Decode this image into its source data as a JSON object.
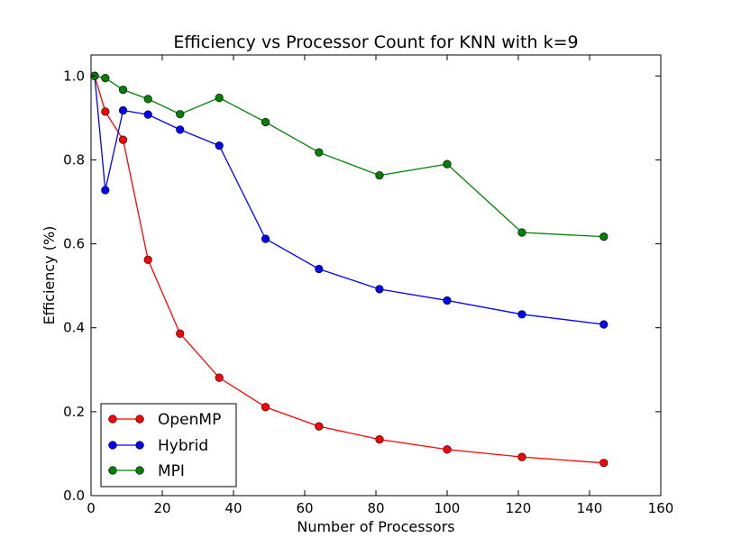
{
  "chart_data": {
    "type": "line",
    "title": "Efficiency vs Processor Count for KNN with k=9",
    "xlabel": "Number of Processors",
    "ylabel": "Efficiency (%)",
    "xlim": [
      0,
      160
    ],
    "ylim": [
      0.0,
      1.05
    ],
    "xticks": [
      0,
      20,
      40,
      60,
      80,
      100,
      120,
      140,
      160
    ],
    "yticks": [
      0.0,
      0.2,
      0.4,
      0.6,
      0.8,
      1.0
    ],
    "xtick_labels": [
      "0",
      "20",
      "40",
      "60",
      "80",
      "100",
      "120",
      "140",
      "160"
    ],
    "ytick_labels": [
      "0.0",
      "0.2",
      "0.4",
      "0.6",
      "0.8",
      "1.0"
    ],
    "x": [
      1,
      4,
      9,
      16,
      25,
      36,
      49,
      64,
      81,
      100,
      121,
      144
    ],
    "grid": false,
    "legend_position": "lower-left",
    "series": [
      {
        "name": "OpenMP",
        "color": "#ff0000",
        "values": [
          1.0,
          0.915,
          0.848,
          0.562,
          0.386,
          0.281,
          0.211,
          0.165,
          0.134,
          0.11,
          0.092,
          0.078
        ]
      },
      {
        "name": "Hybrid",
        "color": "#0000ff",
        "values": [
          1.0,
          0.728,
          0.918,
          0.908,
          0.872,
          0.834,
          0.612,
          0.54,
          0.492,
          0.465,
          0.432,
          0.408
        ]
      },
      {
        "name": "MPI",
        "color": "#008000",
        "values": [
          1.0,
          0.995,
          0.967,
          0.945,
          0.909,
          0.948,
          0.89,
          0.818,
          0.763,
          0.79,
          0.627,
          0.617
        ]
      }
    ]
  }
}
